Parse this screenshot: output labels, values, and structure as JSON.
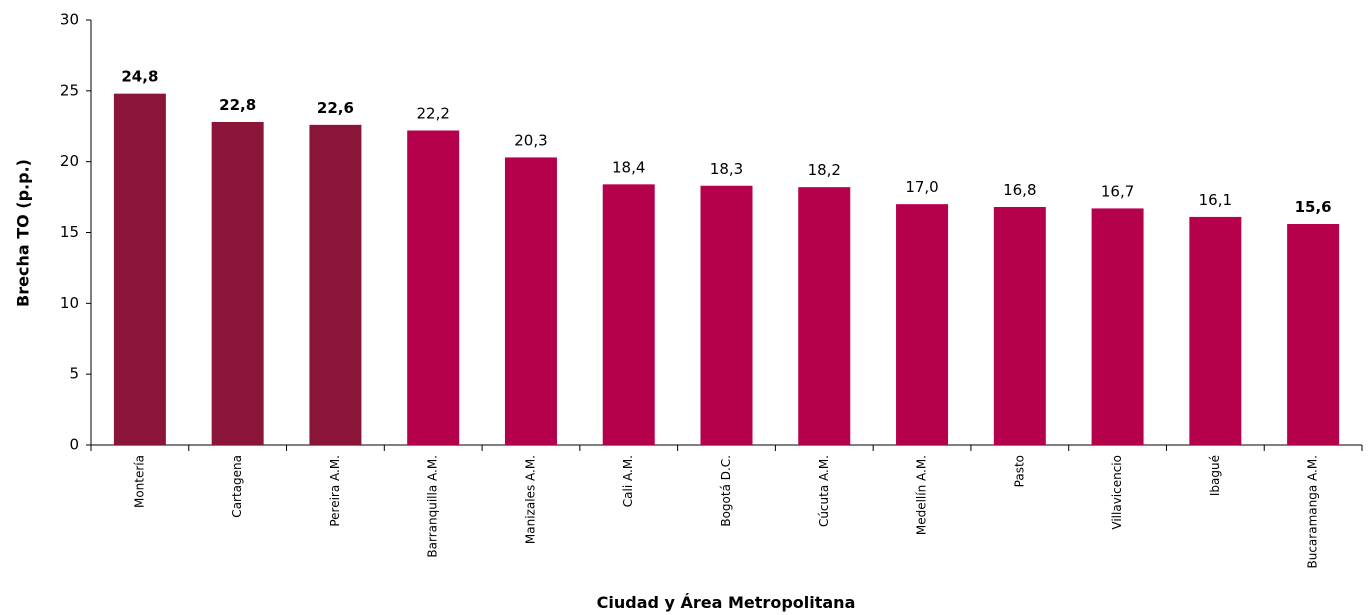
{
  "chart_data": {
    "type": "bar",
    "xlabel": "Ciudad  y Área Metropolitana",
    "ylabel": "Brecha TO (p.p.)",
    "categories": [
      "Montería",
      "Cartagena",
      "Pereira A.M.",
      "Barranquilla A.M.",
      "Manizales A.M.",
      "Cali A.M.",
      "Bogotá D.C.",
      "Cúcuta A.M.",
      "Medellín A.M.",
      "Pasto",
      "Villavicencio",
      "Ibagué",
      "Bucaramanga A.M."
    ],
    "values": [
      24.8,
      22.8,
      22.6,
      22.2,
      20.3,
      18.4,
      18.3,
      18.2,
      17.0,
      16.8,
      16.7,
      16.1,
      15.6
    ],
    "value_labels": [
      "24,8",
      "22,8",
      "22,6",
      "22,2",
      "20,3",
      "18,4",
      "18,3",
      "18,2",
      "17,0",
      "16,8",
      "16,7",
      "16,1",
      "15,6"
    ],
    "value_label_bold": [
      true,
      true,
      true,
      false,
      false,
      false,
      false,
      false,
      false,
      false,
      false,
      false,
      true
    ],
    "colors": [
      "#8b1538",
      "#8b1538",
      "#8b1538",
      "#b5004b",
      "#b5004b",
      "#b5004b",
      "#b5004b",
      "#b5004b",
      "#b5004b",
      "#b5004b",
      "#b5004b",
      "#b5004b",
      "#b5004b"
    ],
    "ylim": [
      0,
      30
    ],
    "yticks": [
      0,
      5,
      10,
      15,
      20,
      25,
      30
    ],
    "grid": false
  }
}
